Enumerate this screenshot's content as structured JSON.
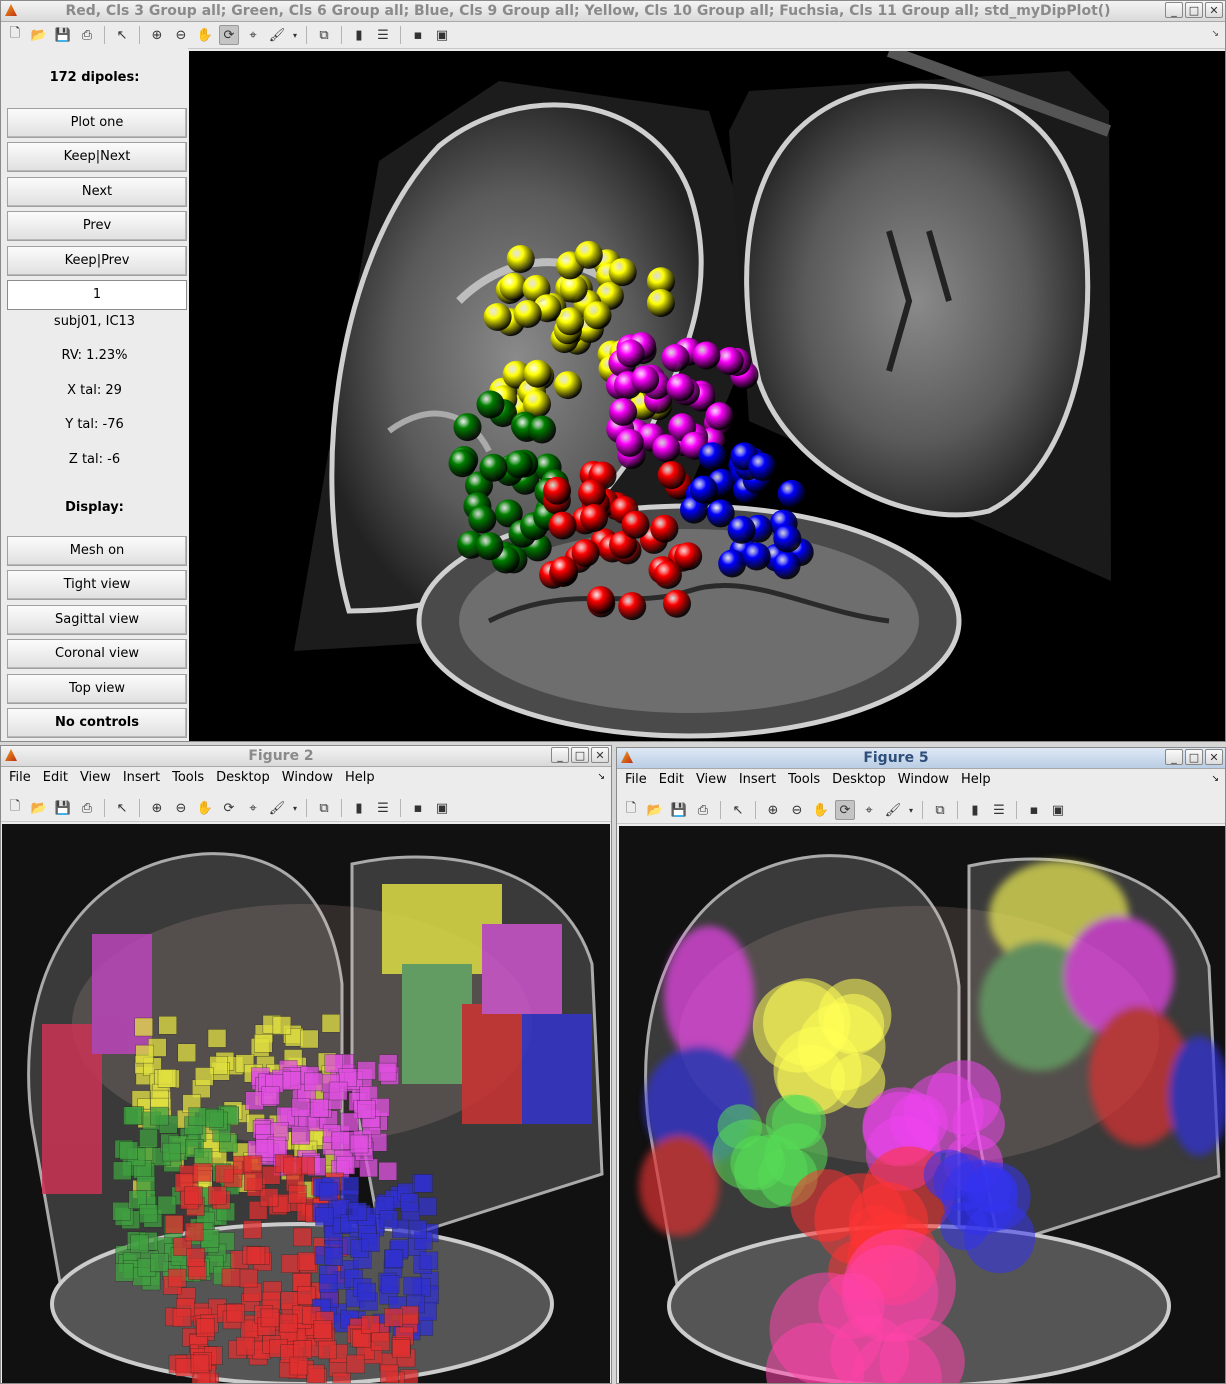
{
  "main_window": {
    "title": "Red, Cls 3 Group all; Green, Cls 6 Group all; Blue, Cls 9 Group all; Yellow, Cls 10 Group all; Fuchsia, Cls 11 Group all; std_myDipPlot()",
    "panel": {
      "count_label": "172 dipoles:",
      "buttons": {
        "plot_one": "Plot one",
        "keep_next": "Keep|Next",
        "next": "Next",
        "prev": "Prev",
        "keep_prev": "Keep|Prev"
      },
      "dipole_index": "1",
      "subject": "subj01, IC13",
      "rv": "RV: 1.23%",
      "x_tal": "X tal: 29",
      "y_tal": "Y tal: -76",
      "z_tal": "Z tal: -6",
      "display_label": "Display:",
      "display_buttons": {
        "mesh_on": "Mesh on",
        "tight_view": "Tight view",
        "sagittal_view": "Sagittal view",
        "coronal_view": "Coronal view",
        "top_view": "Top view",
        "no_controls": "No controls"
      }
    }
  },
  "figure2": {
    "title": "Figure 2"
  },
  "figure5": {
    "title": "Figure 5"
  },
  "menus": [
    "File",
    "Edit",
    "View",
    "Insert",
    "Tools",
    "Desktop",
    "Window",
    "Help"
  ],
  "toolbar_icons": [
    "new-file-icon",
    "open-folder-icon",
    "save-icon",
    "print-icon",
    "pointer-icon",
    "zoom-in-icon",
    "zoom-out-icon",
    "pan-hand-icon",
    "rotate-3d-icon",
    "data-cursor-icon",
    "brush-icon",
    "link-plot-icon",
    "colorbar-icon",
    "legend-icon",
    "hide-plot-tools-icon",
    "show-plot-tools-icon"
  ],
  "cluster_colors": {
    "red": "#ff0000",
    "green": "#008000",
    "blue": "#0000ff",
    "yellow": "#ffff00",
    "fuchsia": "#ff00ff"
  }
}
